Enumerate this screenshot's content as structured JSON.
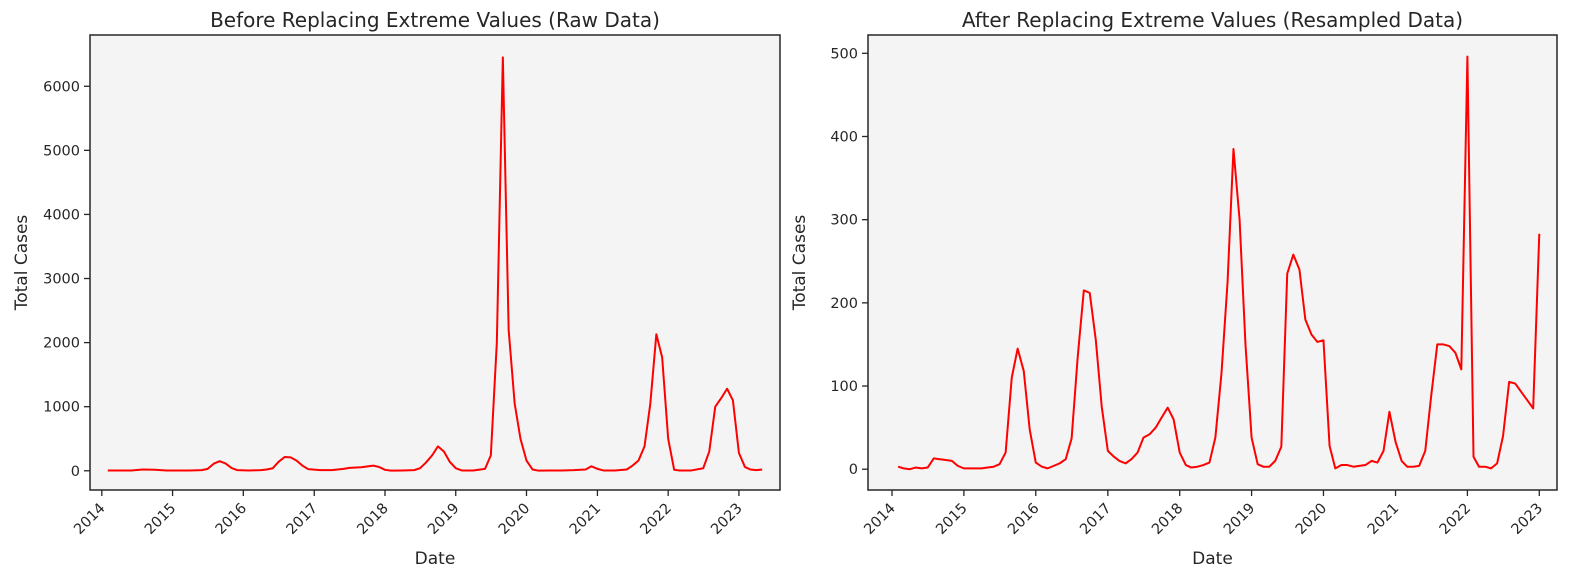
{
  "colors": {
    "line": "#ff0000",
    "plot_background": "#f4f4f4",
    "axes": "#262626"
  },
  "chart_data": [
    {
      "type": "line",
      "title": "Before Replacing Extreme Values (Raw Data)",
      "xlabel": "Date",
      "ylabel": "Total Cases",
      "grid": false,
      "xlim": [
        "2013-11-01",
        "2023-08-01"
      ],
      "ylim": [
        -300,
        6800
      ],
      "xticks": [
        "2014",
        "2015",
        "2016",
        "2017",
        "2018",
        "2019",
        "2020",
        "2021",
        "2022",
        "2023"
      ],
      "yticks": [
        0,
        1000,
        2000,
        3000,
        4000,
        5000,
        6000
      ],
      "ytick_labels": [
        "0",
        "1000",
        "2000",
        "3000",
        "4000",
        "5000",
        "6000"
      ],
      "series": [
        {
          "points": [
            [
              "2014-02-01",
              5
            ],
            [
              "2014-04-01",
              5
            ],
            [
              "2014-06-01",
              5
            ],
            [
              "2014-08-01",
              20
            ],
            [
              "2014-10-01",
              15
            ],
            [
              "2014-12-01",
              5
            ],
            [
              "2015-02-01",
              5
            ],
            [
              "2015-04-01",
              5
            ],
            [
              "2015-06-01",
              10
            ],
            [
              "2015-07-01",
              30
            ],
            [
              "2015-08-01",
              110
            ],
            [
              "2015-09-01",
              150
            ],
            [
              "2015-10-01",
              115
            ],
            [
              "2015-11-01",
              45
            ],
            [
              "2015-12-01",
              10
            ],
            [
              "2016-02-01",
              5
            ],
            [
              "2016-04-01",
              10
            ],
            [
              "2016-05-01",
              20
            ],
            [
              "2016-06-01",
              40
            ],
            [
              "2016-07-01",
              140
            ],
            [
              "2016-08-01",
              215
            ],
            [
              "2016-09-01",
              210
            ],
            [
              "2016-10-01",
              160
            ],
            [
              "2016-11-01",
              80
            ],
            [
              "2016-12-01",
              25
            ],
            [
              "2017-02-01",
              10
            ],
            [
              "2017-04-01",
              10
            ],
            [
              "2017-06-01",
              30
            ],
            [
              "2017-07-01",
              45
            ],
            [
              "2017-09-01",
              55
            ],
            [
              "2017-11-01",
              80
            ],
            [
              "2017-12-01",
              60
            ],
            [
              "2018-01-01",
              15
            ],
            [
              "2018-02-01",
              3
            ],
            [
              "2018-04-01",
              5
            ],
            [
              "2018-06-01",
              10
            ],
            [
              "2018-07-01",
              40
            ],
            [
              "2018-08-01",
              130
            ],
            [
              "2018-09-01",
              240
            ],
            [
              "2018-10-01",
              380
            ],
            [
              "2018-11-01",
              300
            ],
            [
              "2018-12-01",
              140
            ],
            [
              "2019-01-01",
              40
            ],
            [
              "2019-02-01",
              5
            ],
            [
              "2019-04-01",
              5
            ],
            [
              "2019-06-01",
              30
            ],
            [
              "2019-07-01",
              240
            ],
            [
              "2019-08-01",
              2000
            ],
            [
              "2019-09-01",
              6450
            ],
            [
              "2019-10-01",
              2200
            ],
            [
              "2019-11-01",
              1050
            ],
            [
              "2019-12-01",
              500
            ],
            [
              "2020-01-01",
              160
            ],
            [
              "2020-02-01",
              20
            ],
            [
              "2020-03-01",
              3
            ],
            [
              "2020-05-01",
              5
            ],
            [
              "2020-07-01",
              5
            ],
            [
              "2020-09-01",
              10
            ],
            [
              "2020-11-01",
              20
            ],
            [
              "2020-12-01",
              70
            ],
            [
              "2021-01-01",
              30
            ],
            [
              "2021-02-01",
              5
            ],
            [
              "2021-04-01",
              5
            ],
            [
              "2021-06-01",
              20
            ],
            [
              "2021-07-01",
              80
            ],
            [
              "2021-08-01",
              160
            ],
            [
              "2021-09-01",
              380
            ],
            [
              "2021-10-01",
              1050
            ],
            [
              "2021-11-01",
              2130
            ],
            [
              "2021-12-01",
              1770
            ],
            [
              "2022-01-01",
              500
            ],
            [
              "2022-02-01",
              15
            ],
            [
              "2022-03-01",
              5
            ],
            [
              "2022-05-01",
              5
            ],
            [
              "2022-07-01",
              40
            ],
            [
              "2022-08-01",
              300
            ],
            [
              "2022-09-01",
              1000
            ],
            [
              "2022-10-01",
              1130
            ],
            [
              "2022-11-01",
              1280
            ],
            [
              "2022-12-01",
              1100
            ],
            [
              "2023-01-01",
              280
            ],
            [
              "2023-02-01",
              60
            ],
            [
              "2023-03-01",
              20
            ],
            [
              "2023-04-01",
              10
            ],
            [
              "2023-05-01",
              20
            ]
          ]
        }
      ]
    },
    {
      "type": "line",
      "title": "After Replacing Extreme Values (Resampled Data)",
      "xlabel": "Date",
      "ylabel": "Total Cases",
      "grid": false,
      "xlim": [
        "2013-09-01",
        "2023-04-01"
      ],
      "ylim": [
        -25,
        522
      ],
      "xticks": [
        "2014",
        "2015",
        "2016",
        "2017",
        "2018",
        "2019",
        "2020",
        "2021",
        "2022",
        "2023"
      ],
      "yticks": [
        0,
        100,
        200,
        300,
        400,
        500
      ],
      "ytick_labels": [
        "0",
        "100",
        "200",
        "300",
        "400",
        "500"
      ],
      "series": [
        {
          "points": [
            [
              "2014-02-01",
              3
            ],
            [
              "2014-03-01",
              1
            ],
            [
              "2014-04-01",
              0
            ],
            [
              "2014-05-01",
              2
            ],
            [
              "2014-06-01",
              1
            ],
            [
              "2014-07-01",
              2
            ],
            [
              "2014-08-01",
              13
            ],
            [
              "2014-09-01",
              12
            ],
            [
              "2014-10-01",
              11
            ],
            [
              "2014-11-01",
              10
            ],
            [
              "2014-12-01",
              4
            ],
            [
              "2015-01-01",
              1
            ],
            [
              "2015-02-01",
              1
            ],
            [
              "2015-03-01",
              1
            ],
            [
              "2015-04-01",
              1
            ],
            [
              "2015-05-01",
              2
            ],
            [
              "2015-06-01",
              3
            ],
            [
              "2015-07-01",
              6
            ],
            [
              "2015-08-01",
              20
            ],
            [
              "2015-09-01",
              110
            ],
            [
              "2015-10-01",
              145
            ],
            [
              "2015-11-01",
              118
            ],
            [
              "2015-12-01",
              48
            ],
            [
              "2016-01-01",
              8
            ],
            [
              "2016-02-01",
              3
            ],
            [
              "2016-03-01",
              1
            ],
            [
              "2016-04-01",
              4
            ],
            [
              "2016-05-01",
              7
            ],
            [
              "2016-06-01",
              12
            ],
            [
              "2016-07-01",
              37
            ],
            [
              "2016-08-01",
              135
            ],
            [
              "2016-09-01",
              215
            ],
            [
              "2016-10-01",
              212
            ],
            [
              "2016-11-01",
              155
            ],
            [
              "2016-12-01",
              75
            ],
            [
              "2017-01-01",
              22
            ],
            [
              "2017-02-01",
              15
            ],
            [
              "2017-03-01",
              10
            ],
            [
              "2017-04-01",
              7
            ],
            [
              "2017-05-01",
              12
            ],
            [
              "2017-06-01",
              20
            ],
            [
              "2017-07-01",
              38
            ],
            [
              "2017-08-01",
              42
            ],
            [
              "2017-09-01",
              50
            ],
            [
              "2017-10-01",
              62
            ],
            [
              "2017-11-01",
              74
            ],
            [
              "2017-12-01",
              60
            ],
            [
              "2018-01-01",
              20
            ],
            [
              "2018-02-01",
              5
            ],
            [
              "2018-03-01",
              2
            ],
            [
              "2018-04-01",
              3
            ],
            [
              "2018-05-01",
              5
            ],
            [
              "2018-06-01",
              8
            ],
            [
              "2018-07-01",
              38
            ],
            [
              "2018-08-01",
              115
            ],
            [
              "2018-09-01",
              225
            ],
            [
              "2018-10-01",
              385
            ],
            [
              "2018-11-01",
              300
            ],
            [
              "2018-12-01",
              150
            ],
            [
              "2019-01-01",
              38
            ],
            [
              "2019-02-01",
              6
            ],
            [
              "2019-03-01",
              3
            ],
            [
              "2019-04-01",
              3
            ],
            [
              "2019-05-01",
              10
            ],
            [
              "2019-06-01",
              27
            ],
            [
              "2019-07-01",
              235
            ],
            [
              "2019-08-01",
              258
            ],
            [
              "2019-09-01",
              240
            ],
            [
              "2019-10-01",
              180
            ],
            [
              "2019-11-01",
              162
            ],
            [
              "2019-12-01",
              153
            ],
            [
              "2020-01-01",
              155
            ],
            [
              "2020-02-01",
              28
            ],
            [
              "2020-03-01",
              1
            ],
            [
              "2020-04-01",
              5
            ],
            [
              "2020-05-01",
              5
            ],
            [
              "2020-06-01",
              3
            ],
            [
              "2020-07-01",
              4
            ],
            [
              "2020-08-01",
              5
            ],
            [
              "2020-09-01",
              10
            ],
            [
              "2020-10-01",
              8
            ],
            [
              "2020-11-01",
              22
            ],
            [
              "2020-12-01",
              69
            ],
            [
              "2021-01-01",
              33
            ],
            [
              "2021-02-01",
              10
            ],
            [
              "2021-03-01",
              3
            ],
            [
              "2021-04-01",
              3
            ],
            [
              "2021-05-01",
              4
            ],
            [
              "2021-06-01",
              22
            ],
            [
              "2021-07-01",
              88
            ],
            [
              "2021-08-01",
              150
            ],
            [
              "2021-09-01",
              150
            ],
            [
              "2021-10-01",
              148
            ],
            [
              "2021-11-01",
              140
            ],
            [
              "2021-12-01",
              120
            ],
            [
              "2022-01-01",
              496
            ],
            [
              "2022-02-01",
              15
            ],
            [
              "2022-03-01",
              3
            ],
            [
              "2022-04-01",
              3
            ],
            [
              "2022-05-01",
              1
            ],
            [
              "2022-06-01",
              7
            ],
            [
              "2022-07-01",
              40
            ],
            [
              "2022-08-01",
              105
            ],
            [
              "2022-09-01",
              103
            ],
            [
              "2022-10-01",
              93
            ],
            [
              "2022-11-01",
              83
            ],
            [
              "2022-12-01",
              73
            ],
            [
              "2023-01-01",
              283
            ]
          ]
        }
      ]
    }
  ]
}
